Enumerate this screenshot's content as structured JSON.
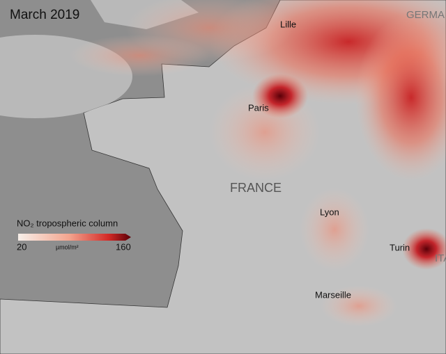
{
  "title": "March 2019",
  "places": [
    "Lille",
    "Paris",
    "FRANCE",
    "Lyon",
    "Turin",
    "Marseille",
    "GERMA",
    "ITA"
  ],
  "legend": {
    "title": "NO₂ tropospheric column",
    "min": 20,
    "unit": "µmol/m²",
    "max": 160
  }
}
